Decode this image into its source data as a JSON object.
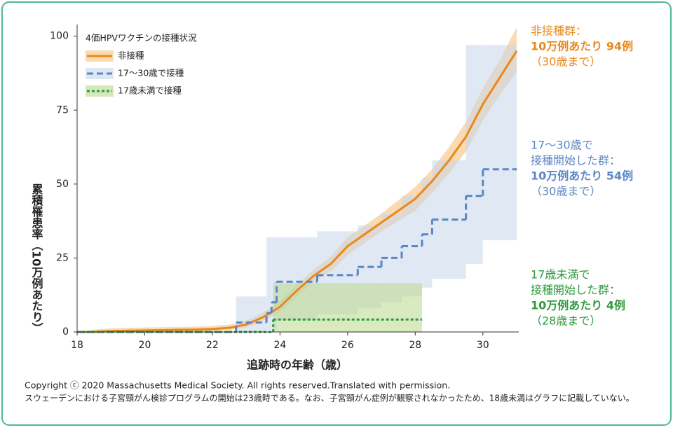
{
  "chart_data": {
    "type": "line",
    "y_label": "累積罹患率（10万例あたり）",
    "x_label": "追跡時の年齢（歳）",
    "xlim": [
      18,
      31
    ],
    "ylim": [
      0,
      103
    ],
    "xticks": [
      18,
      20,
      22,
      24,
      26,
      28,
      30
    ],
    "yticks": [
      0,
      25,
      50,
      75,
      100
    ],
    "legend": {
      "title": "4価HPVワクチンの接種状況",
      "position": "upper left"
    },
    "series": [
      {
        "name": "非接種",
        "color": "#e8891e",
        "band_color": "#f6c27e",
        "dash": "solid",
        "step": false,
        "x": [
          18,
          18.5,
          19,
          19.5,
          20,
          20.5,
          21,
          21.5,
          22,
          22.5,
          23,
          23.5,
          24,
          24.5,
          25,
          25.5,
          26,
          26.5,
          27,
          27.5,
          28,
          28.5,
          29,
          29.5,
          30,
          30.5,
          31
        ],
        "values": [
          0,
          0,
          0.3,
          0.4,
          0.5,
          0.6,
          0.7,
          0.8,
          1,
          1.4,
          2.5,
          5,
          8.5,
          14,
          19,
          23,
          29,
          33,
          37,
          41,
          45,
          51,
          58,
          66,
          77,
          86,
          95
        ],
        "upper": [
          0,
          0.8,
          1.2,
          1.4,
          1.5,
          1.6,
          1.7,
          1.8,
          2,
          2.5,
          3.8,
          6.6,
          10.5,
          16,
          21,
          25.5,
          32,
          36,
          40,
          44.5,
          49,
          55,
          62.5,
          71,
          82.5,
          92,
          103
        ],
        "lower": [
          0,
          0,
          0,
          0,
          0,
          0,
          0.1,
          0.2,
          0.3,
          0.6,
          1.5,
          3.6,
          6.8,
          12,
          17,
          20.5,
          26,
          30,
          34,
          37.5,
          41,
          47,
          53.5,
          61,
          71.5,
          80,
          88
        ]
      },
      {
        "name": "17～30歳で接種",
        "color": "#5b86c5",
        "band_color": "#c6d7ea",
        "dash": "dashed",
        "step": true,
        "x": [
          18,
          22.7,
          23.6,
          23.75,
          23.9,
          25.1,
          26.3,
          27.0,
          27.6,
          28.2,
          28.5,
          29.5,
          30.0,
          31
        ],
        "values": [
          0,
          3.2,
          6.4,
          10,
          17,
          19.2,
          22,
          25,
          29,
          33,
          38,
          46,
          55,
          55
        ],
        "upper": [
          0,
          12,
          32,
          32,
          32,
          34,
          36,
          40,
          46,
          52,
          58,
          97,
          97,
          97
        ],
        "lower": [
          0,
          0,
          0.5,
          1,
          4,
          6,
          8,
          10,
          12,
          15,
          18,
          23,
          31,
          31
        ]
      },
      {
        "name": "17歳未満で接種",
        "color": "#2f9a3c",
        "band_color": "#b9d98c",
        "dash": "dotted",
        "step": true,
        "x": [
          18,
          23.8,
          28.2
        ],
        "values": [
          0,
          4.2,
          4.2
        ],
        "upper": [
          0,
          16.5,
          16.5
        ],
        "lower": [
          0,
          0,
          0
        ]
      }
    ],
    "annotations": [
      {
        "lines": [
          "非接種群：",
          "10万例あたり 94例",
          "（30歳まで）"
        ]
      },
      {
        "lines": [
          "17～30歳で",
          "接種開始した群：",
          "10万例あたり 54例",
          "（30歳まで）"
        ]
      },
      {
        "lines": [
          "17歳未満で",
          "接種開始した群：",
          "10万例あたり 4例",
          "（28歳まで）"
        ]
      }
    ],
    "footnotes": [
      "Copyright ⓒ 2020 Massachusetts Medical Society. All rights reserved.Translated with permission.",
      "スウェーデンにおける子宮頸がん検診プログラムの開始は23歳時である。なお、子宮頸がん症例が観察されなかったため、18歳未満はグラフに記載していない。"
    ]
  }
}
